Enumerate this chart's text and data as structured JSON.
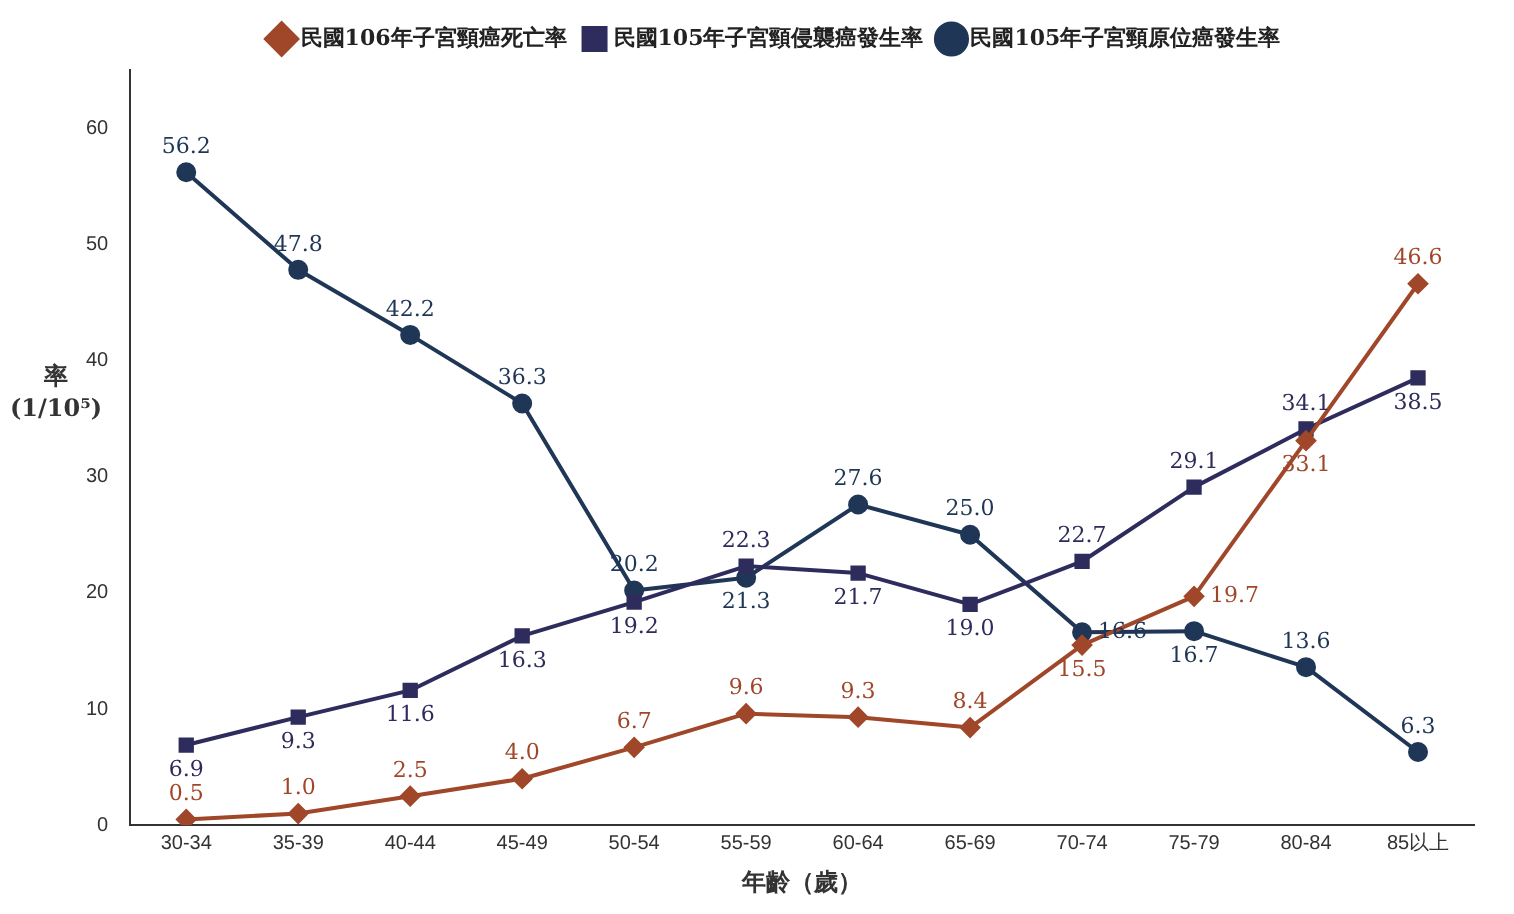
{
  "chart_data": {
    "type": "line",
    "xlabel": "年齡（歲）",
    "ylabel": "率 (1/10⁵)",
    "categories": [
      "30-34",
      "35-39",
      "40-44",
      "45-49",
      "50-54",
      "55-59",
      "60-64",
      "65-69",
      "70-74",
      "75-79",
      "80-84",
      "85以上"
    ],
    "series": [
      {
        "name": "民國106年子宮頸癌死亡率",
        "color": "#a0472a",
        "marker": "diamond",
        "values": [
          0.5,
          1.0,
          2.5,
          4.0,
          6.7,
          9.6,
          9.3,
          8.4,
          15.5,
          19.7,
          33.1,
          46.6
        ],
        "value_labels": [
          "0.5",
          "1.0",
          "2.5",
          "4.0",
          "6.7",
          "9.6",
          "9.3",
          "8.4",
          "15.5",
          "19.7",
          "33.1",
          "46.6"
        ]
      },
      {
        "name": "民國105年子宮頸侵襲癌發生率",
        "color": "#2e2c5c",
        "marker": "square",
        "values": [
          6.9,
          9.3,
          11.6,
          16.3,
          19.2,
          22.3,
          21.7,
          19.0,
          22.7,
          29.1,
          34.1,
          38.5
        ],
        "value_labels": [
          "6.9",
          "9.3",
          "11.6",
          "16.3",
          "19.2",
          "22.3",
          "21.7",
          "19.0",
          "22.7",
          "29.1",
          "34.1",
          "38.5"
        ]
      },
      {
        "name": "民國105年子宮頸原位癌發生率",
        "color": "#1f3656",
        "marker": "circle",
        "values": [
          56.2,
          47.8,
          42.2,
          36.3,
          20.2,
          21.3,
          27.6,
          25.0,
          16.6,
          16.7,
          13.6,
          6.3
        ],
        "value_labels": [
          "56.2",
          "47.8",
          "42.2",
          "36.3",
          "20.2",
          "21.3",
          "27.6",
          "25.0",
          "16.6",
          "16.7",
          "13.6",
          "6.3"
        ]
      }
    ],
    "ylim": [
      0,
      65
    ],
    "yticks": [
      0,
      10,
      20,
      30,
      40,
      50,
      60
    ],
    "grid": false,
    "legend": "top"
  }
}
